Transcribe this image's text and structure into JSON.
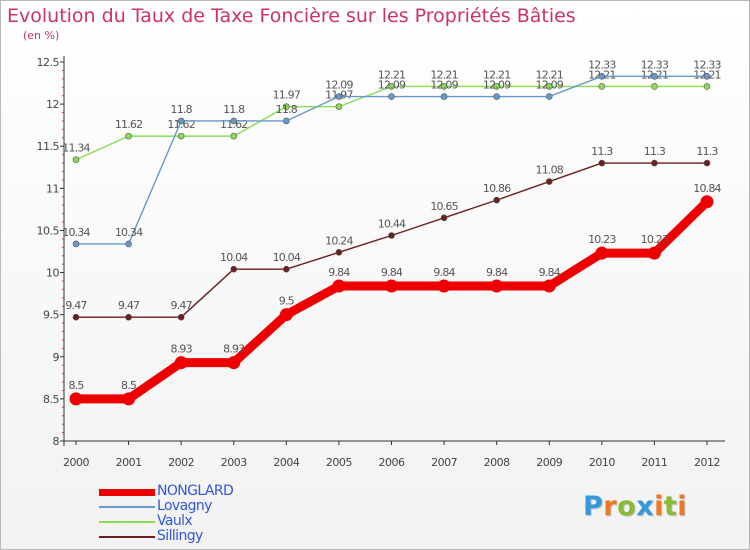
{
  "chart_data": {
    "type": "line",
    "title": "Evolution du Taux de Taxe Foncière sur les Propriétés Bâties",
    "subtitle": "(en %)",
    "categories": [
      "2000",
      "2001",
      "2002",
      "2003",
      "2004",
      "2005",
      "2006",
      "2007",
      "2008",
      "2009",
      "2010",
      "2011",
      "2012"
    ],
    "ylim": [
      8,
      12.5
    ],
    "yticks": [
      8,
      8.5,
      9,
      9.5,
      10,
      10.5,
      11,
      11.5,
      12,
      12.5
    ],
    "ytick_labels": [
      "8",
      "8.5",
      "9",
      "9.5",
      "10",
      "10.5",
      "11",
      "11.5",
      "12",
      "12.5"
    ],
    "grid": false,
    "legend_position": "bottom-left",
    "series": [
      {
        "name": "Sillingy",
        "color": "#6b1f1f",
        "values": [
          9.47,
          9.47,
          9.47,
          10.04,
          10.04,
          10.24,
          10.44,
          10.65,
          10.86,
          11.08,
          11.3,
          11.3,
          11.3
        ],
        "labels": [
          "9.47",
          "9.47",
          "9.47",
          "10.04",
          "10.04",
          "10.24",
          "10.44",
          "10.65",
          "10.86",
          "11.08",
          "11.3",
          "11.3",
          "11.3"
        ]
      },
      {
        "name": "Vaulx",
        "color": "#88dd55",
        "values": [
          11.34,
          11.62,
          11.62,
          11.62,
          11.97,
          11.97,
          12.21,
          12.21,
          12.21,
          12.21,
          12.21,
          12.21,
          12.21
        ],
        "labels": [
          "11.34",
          "11.62",
          "11.62",
          "11.62",
          "11.97",
          "11.97",
          "12.21",
          "12.21",
          "12.21",
          "12.21",
          "12.21",
          "12.21",
          "12.21"
        ]
      },
      {
        "name": "Lovagny",
        "color": "#6699cc",
        "values": [
          10.34,
          10.34,
          11.8,
          11.8,
          11.8,
          12.09,
          12.09,
          12.09,
          12.09,
          12.09,
          12.33,
          12.33,
          12.33
        ],
        "labels": [
          "10.34",
          "10.34",
          "11.8",
          "11.8",
          "11.8",
          "12.09",
          "12.09",
          "12.09",
          "12.09",
          "12.09",
          "12.33",
          "12.33",
          "12.33"
        ]
      },
      {
        "name": "NONGLARD",
        "color": "#ee0000",
        "values": [
          8.5,
          8.5,
          8.93,
          8.93,
          9.5,
          9.84,
          9.84,
          9.84,
          9.84,
          9.84,
          10.23,
          10.23,
          10.84
        ],
        "labels": [
          "8.5",
          "8.5",
          "8.93",
          "8.93",
          "9.5",
          "9.84",
          "9.84",
          "9.84",
          "9.84",
          "9.84",
          "10.23",
          "10.23",
          "10.84"
        ]
      }
    ],
    "legend": [
      {
        "name": "NONGLARD",
        "color": "#ee0000"
      },
      {
        "name": "Lovagny",
        "color": "#6699cc"
      },
      {
        "name": "Vaulx",
        "color": "#88dd55"
      },
      {
        "name": "Sillingy",
        "color": "#6b1f1f"
      }
    ]
  },
  "logo": {
    "letters": [
      "P",
      "r",
      "o",
      "x",
      "i",
      "t",
      "i"
    ],
    "colors": [
      "#3399dd",
      "#ee7722",
      "#88bb33",
      "#3399dd",
      "#ee7722",
      "#88bb33",
      "#ee7722"
    ]
  }
}
